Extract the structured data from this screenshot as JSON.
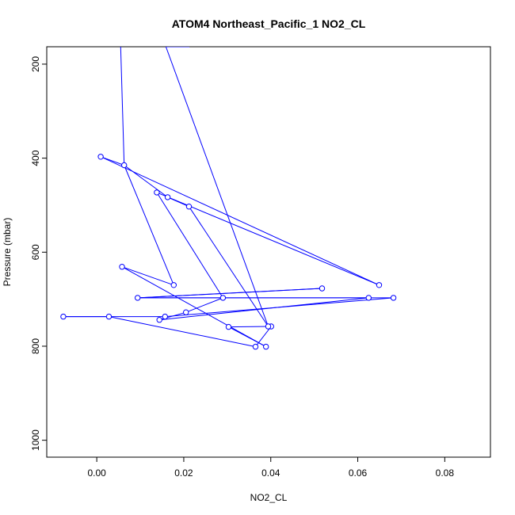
{
  "chart_data": {
    "type": "line",
    "title": "ATOM4 Northeast_Pacific_1 NO2_CL",
    "xlabel": "NO2_CL",
    "ylabel": "Pressure (mbar)",
    "xlim": [
      -0.0115,
      0.0905
    ],
    "ylim": [
      1036,
      163
    ],
    "y_reversed": true,
    "grid": false,
    "legend": "none",
    "line_color": "#0000ff",
    "marker": "open-circle",
    "x_ticks": [
      0.0,
      0.02,
      0.04,
      0.06,
      0.08
    ],
    "x_tick_labels": [
      "0.00",
      "0.02",
      "0.04",
      "0.06",
      "0.08"
    ],
    "y_ticks": [
      200,
      400,
      600,
      800,
      1000
    ],
    "y_tick_labels": [
      "200",
      "400",
      "600",
      "800",
      "1000"
    ],
    "series": [
      {
        "x": [
          0.0055,
          0.0063,
          0.0177,
          0.0058,
          0.0389,
          0.0303,
          0.0401,
          0.0365,
          0.0028,
          -0.0077,
          0.0157,
          0.0682,
          0.0094,
          0.0518,
          0.0097,
          0.0625,
          0.0144,
          0.0205,
          0.029,
          0.0138,
          0.0649,
          0.0009,
          0.0063,
          0.0163,
          0.0212,
          0.0394,
          0.0159,
          0.0213
        ],
        "y": [
          163,
          415,
          670,
          631,
          801,
          759,
          758,
          801,
          737,
          737,
          737,
          697,
          697,
          677,
          697,
          697,
          744,
          728,
          697,
          473,
          670,
          397,
          415,
          483,
          503,
          758,
          163,
          163
        ]
      }
    ],
    "points": [
      {
        "x": 0.0063,
        "y": 415
      },
      {
        "x": 0.0177,
        "y": 670
      },
      {
        "x": 0.0058,
        "y": 631
      },
      {
        "x": 0.0389,
        "y": 801
      },
      {
        "x": 0.0303,
        "y": 759
      },
      {
        "x": 0.0401,
        "y": 758
      },
      {
        "x": 0.0365,
        "y": 801
      },
      {
        "x": 0.0028,
        "y": 737
      },
      {
        "x": -0.0077,
        "y": 737
      },
      {
        "x": 0.0157,
        "y": 737
      },
      {
        "x": 0.0682,
        "y": 697
      },
      {
        "x": 0.0094,
        "y": 697
      },
      {
        "x": 0.0518,
        "y": 677
      },
      {
        "x": 0.0625,
        "y": 697
      },
      {
        "x": 0.0144,
        "y": 744
      },
      {
        "x": 0.0205,
        "y": 728
      },
      {
        "x": 0.029,
        "y": 697
      },
      {
        "x": 0.0138,
        "y": 473
      },
      {
        "x": 0.0649,
        "y": 670
      },
      {
        "x": 0.0009,
        "y": 397
      },
      {
        "x": 0.0163,
        "y": 483
      },
      {
        "x": 0.0212,
        "y": 503
      },
      {
        "x": 0.0394,
        "y": 758
      }
    ]
  }
}
